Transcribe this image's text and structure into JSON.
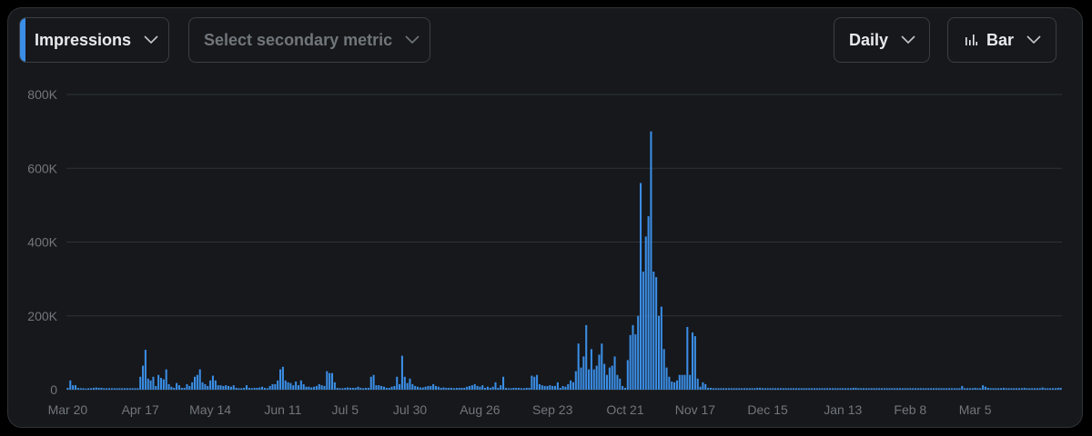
{
  "controls": {
    "primary_metric": "Impressions",
    "secondary_metric_placeholder": "Select secondary metric",
    "granularity": "Daily",
    "chart_type": "Bar"
  },
  "colors": {
    "bar": "#3b8ee6",
    "accent": "#3b8ee6",
    "grid": "#2f3336",
    "tick_text": "#71767b",
    "panel_bg": "#16181c"
  },
  "icons": {
    "chevron": "chevron-down-icon",
    "chart_type": "bar-chart-icon"
  },
  "chart_data": {
    "type": "bar",
    "title": "",
    "xlabel": "",
    "ylabel": "",
    "ylim": [
      0,
      800000
    ],
    "y_ticks": [
      {
        "value": 0,
        "label": "0"
      },
      {
        "value": 200000,
        "label": "200K"
      },
      {
        "value": 400000,
        "label": "400K"
      },
      {
        "value": 600000,
        "label": "600K"
      },
      {
        "value": 800000,
        "label": "800K"
      }
    ],
    "x_tick_labels": [
      "Mar 20",
      "Apr 17",
      "May 14",
      "Jun 11",
      "Jul 5",
      "Jul 30",
      "Aug 26",
      "Sep 23",
      "Oct 21",
      "Nov 17",
      "Dec 15",
      "Jan 13",
      "Feb 8",
      "Mar 5"
    ],
    "x_tick_day_index": [
      0,
      28,
      55,
      83,
      107,
      132,
      159,
      187,
      215,
      242,
      270,
      299,
      325,
      350
    ],
    "grid": true,
    "legend": "none",
    "series": [
      {
        "values": [
          5000,
          25000,
          12000,
          12000,
          5000,
          4000,
          4000,
          3000,
          4000,
          4000,
          5000,
          6000,
          5000,
          5000,
          4000,
          4000,
          4000,
          4000,
          4000,
          4000,
          4000,
          4000,
          4000,
          4000,
          4000,
          4000,
          4000,
          4000,
          35000,
          65000,
          108000,
          30000,
          25000,
          35000,
          10000,
          40000,
          32000,
          28000,
          55000,
          15000,
          8000,
          5000,
          18000,
          12000,
          5000,
          5000,
          15000,
          10000,
          20000,
          35000,
          40000,
          55000,
          20000,
          15000,
          10000,
          25000,
          38000,
          25000,
          12000,
          12000,
          10000,
          12000,
          10000,
          8000,
          12000,
          5000,
          4000,
          4000,
          5000,
          12000,
          5000,
          4000,
          5000,
          5000,
          6000,
          8000,
          5000,
          4000,
          10000,
          15000,
          15000,
          25000,
          55000,
          62000,
          25000,
          20000,
          18000,
          12000,
          22000,
          12000,
          25000,
          15000,
          8000,
          8000,
          6000,
          8000,
          10000,
          15000,
          12000,
          10000,
          50000,
          45000,
          45000,
          20000,
          5000,
          4000,
          4000,
          5000,
          6000,
          5000,
          5000,
          5000,
          8000,
          5000,
          4000,
          5000,
          5000,
          35000,
          40000,
          12000,
          12000,
          10000,
          8000,
          5000,
          5000,
          8000,
          10000,
          35000,
          15000,
          92000,
          35000,
          18000,
          30000,
          15000,
          10000,
          8000,
          6000,
          6000,
          8000,
          10000,
          10000,
          15000,
          10000,
          8000,
          5000,
          6000,
          5000,
          5000,
          5000,
          4000,
          5000,
          5000,
          5000,
          5000,
          8000,
          10000,
          12000,
          15000,
          10000,
          8000,
          12000,
          5000,
          8000,
          5000,
          8000,
          20000,
          5000,
          12000,
          35000,
          5000,
          4000,
          4000,
          5000,
          5000,
          5000,
          4000,
          4000,
          5000,
          5000,
          38000,
          35000,
          40000,
          15000,
          12000,
          10000,
          10000,
          12000,
          10000,
          10000,
          20000,
          5000,
          10000,
          8000,
          15000,
          25000,
          20000,
          50000,
          125000,
          60000,
          90000,
          175000,
          55000,
          110000,
          55000,
          65000,
          95000,
          125000,
          70000,
          40000,
          60000,
          65000,
          90000,
          40000,
          30000,
          10000,
          5000,
          80000,
          148000,
          175000,
          150000,
          200000,
          560000,
          320000,
          415000,
          470000,
          700000,
          320000,
          305000,
          200000,
          225000,
          110000,
          60000,
          35000,
          22000,
          20000,
          25000,
          40000,
          40000,
          40000,
          170000,
          40000,
          155000,
          145000,
          30000,
          8000,
          20000,
          15000,
          5000,
          5000,
          4000,
          4000,
          4000,
          4000,
          4000,
          4000,
          4000,
          4000,
          4000,
          4000,
          4000,
          4000,
          4000,
          4000,
          4000,
          4000,
          4000,
          5000,
          5000,
          4000,
          4000,
          4000,
          4000,
          4000,
          4000,
          4000,
          4000,
          4000,
          4000,
          4000,
          4000,
          4000,
          4000,
          4000,
          4000,
          4000,
          4000,
          4000,
          4000,
          4000,
          4000,
          4000,
          4000,
          4000,
          4000,
          4000,
          4000,
          4000,
          4000,
          4000,
          4000,
          4000,
          4000,
          4000,
          5000,
          5000,
          4000,
          4000,
          4000,
          4000,
          4000,
          4000,
          4000,
          4000,
          4000,
          4000,
          4000,
          4000,
          4000,
          4000,
          4000,
          4000,
          4000,
          4000,
          4000,
          4000,
          4000,
          4000,
          4000,
          4000,
          4000,
          4000,
          4000,
          4000,
          4000,
          4000,
          4000,
          4000,
          4000,
          4000,
          4000,
          4000,
          4000,
          4000,
          4000,
          4000,
          10000,
          4000,
          4000,
          4000,
          4000,
          5000,
          4000,
          4000,
          12000,
          8000,
          5000,
          4000,
          4000,
          4000,
          4000,
          4000,
          5000,
          4000,
          4000,
          4000,
          4000,
          4000,
          4000,
          4000,
          5000,
          4000,
          4000,
          4000,
          4000,
          4000,
          4000,
          6000,
          4000,
          4000,
          4000,
          4000,
          4000,
          5000,
          5000
        ]
      }
    ]
  }
}
